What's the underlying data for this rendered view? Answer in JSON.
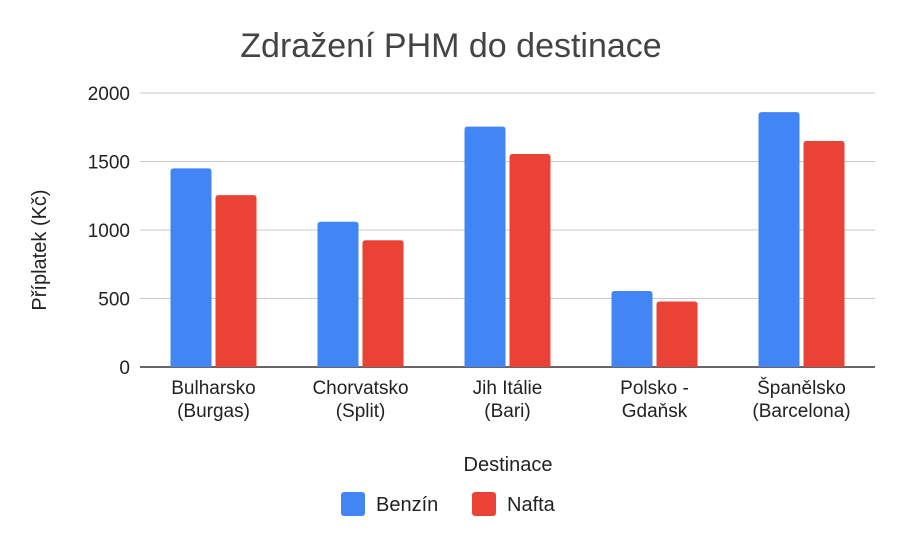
{
  "chart_data": {
    "type": "bar",
    "title": "Zdražení PHM do destinace",
    "xlabel": "Destinace",
    "ylabel": "Příplatek (Kč)",
    "ylim": [
      0,
      2000
    ],
    "yticks": [
      0,
      500,
      1000,
      1500,
      2000
    ],
    "grid": true,
    "legend_position": "bottom",
    "categories": [
      [
        "Bulharsko",
        "(Burgas)"
      ],
      [
        "Chorvatsko",
        "(Split)"
      ],
      [
        "Jih Itálie",
        "(Bari)"
      ],
      [
        "Polsko -",
        "Gdaňsk"
      ],
      [
        "Španělsko",
        "(Barcelona)"
      ]
    ],
    "series": [
      {
        "name": "Benzín",
        "color": "#4285f4",
        "values": [
          1450,
          1060,
          1755,
          555,
          1860
        ]
      },
      {
        "name": "Nafta",
        "color": "#ea4335",
        "values": [
          1255,
          925,
          1555,
          478,
          1650
        ]
      }
    ]
  }
}
